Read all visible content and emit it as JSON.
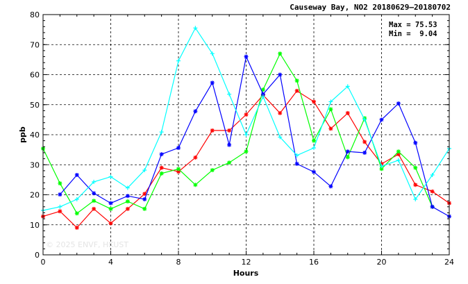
{
  "chart_data": {
    "type": "line",
    "title": "Causeway Bay, NO2 20180629–20180702",
    "xlabel": "Hours",
    "ylabel": "ppb",
    "xlim": [
      0,
      24
    ],
    "ylim": [
      0,
      80
    ],
    "x_ticks": [
      0,
      4,
      8,
      12,
      16,
      20,
      24
    ],
    "y_ticks": [
      0,
      10,
      20,
      30,
      40,
      50,
      60,
      70,
      80
    ],
    "grid": true,
    "annotations": {
      "max": "Max = 75.53",
      "min": "Min =  9.04"
    },
    "watermark": "© 2025 ENVF, HKUST",
    "series": [
      {
        "color": "#ff0000",
        "marker": "asterisk",
        "x": [
          0,
          1,
          2,
          3,
          4,
          5,
          6,
          7,
          8,
          9,
          10,
          11,
          12,
          13,
          14,
          15,
          16,
          17,
          18,
          19,
          20,
          21,
          22,
          23,
          24
        ],
        "values": [
          12.8,
          14.5,
          9.04,
          15.3,
          10.5,
          15.3,
          20.3,
          29.0,
          27.7,
          32.4,
          41.4,
          41.4,
          46.7,
          53.2,
          47.2,
          54.6,
          51.0,
          42.0,
          47.2,
          37.6,
          30.3,
          33.5,
          23.3,
          21.1,
          17.2
        ]
      },
      {
        "color": "#00ff00",
        "marker": "asterisk",
        "x": [
          0,
          1,
          2,
          3,
          4,
          5,
          6,
          7,
          8,
          9,
          10,
          11,
          12,
          13,
          14,
          15,
          16,
          17,
          18,
          19,
          20,
          21,
          22,
          23,
          24
        ],
        "values": [
          35.4,
          23.8,
          13.8,
          18.0,
          15.3,
          17.8,
          15.3,
          27.1,
          28.6,
          23.3,
          28.2,
          30.7,
          34.4,
          55.0,
          67.0,
          58.0,
          38.0,
          48.5,
          32.5,
          45.5,
          28.6,
          34.4,
          29.0,
          16.0,
          null
        ]
      },
      {
        "color": "#0000ff",
        "marker": "asterisk",
        "x": [
          1,
          2,
          3,
          4,
          5,
          6,
          7,
          8,
          9,
          10,
          11,
          12,
          13,
          14,
          15,
          16,
          17,
          18,
          19,
          20,
          21,
          22,
          23,
          24
        ],
        "values": [
          20.1,
          26.6,
          20.5,
          17.2,
          19.6,
          18.5,
          33.5,
          35.6,
          47.8,
          57.3,
          36.6,
          66.0,
          53.5,
          60.0,
          30.3,
          27.6,
          22.8,
          34.4,
          34.0,
          45.0,
          50.4,
          37.3,
          16.0,
          12.8
        ]
      },
      {
        "color": "#00ffff",
        "marker": "plus",
        "x": [
          0,
          1,
          2,
          3,
          4,
          5,
          6,
          7,
          8,
          9,
          10,
          11,
          12,
          13,
          14,
          15,
          16,
          17,
          18,
          19,
          20,
          21,
          22,
          23,
          24
        ],
        "values": [
          14.8,
          16.0,
          18.5,
          24.3,
          26.0,
          22.3,
          28.2,
          40.9,
          64.6,
          75.53,
          67.0,
          53.5,
          40.0,
          52.7,
          39.2,
          33.1,
          35.6,
          51.0,
          56.1,
          45.0,
          29.5,
          31.5,
          18.5,
          26.6,
          35.4
        ]
      }
    ]
  }
}
